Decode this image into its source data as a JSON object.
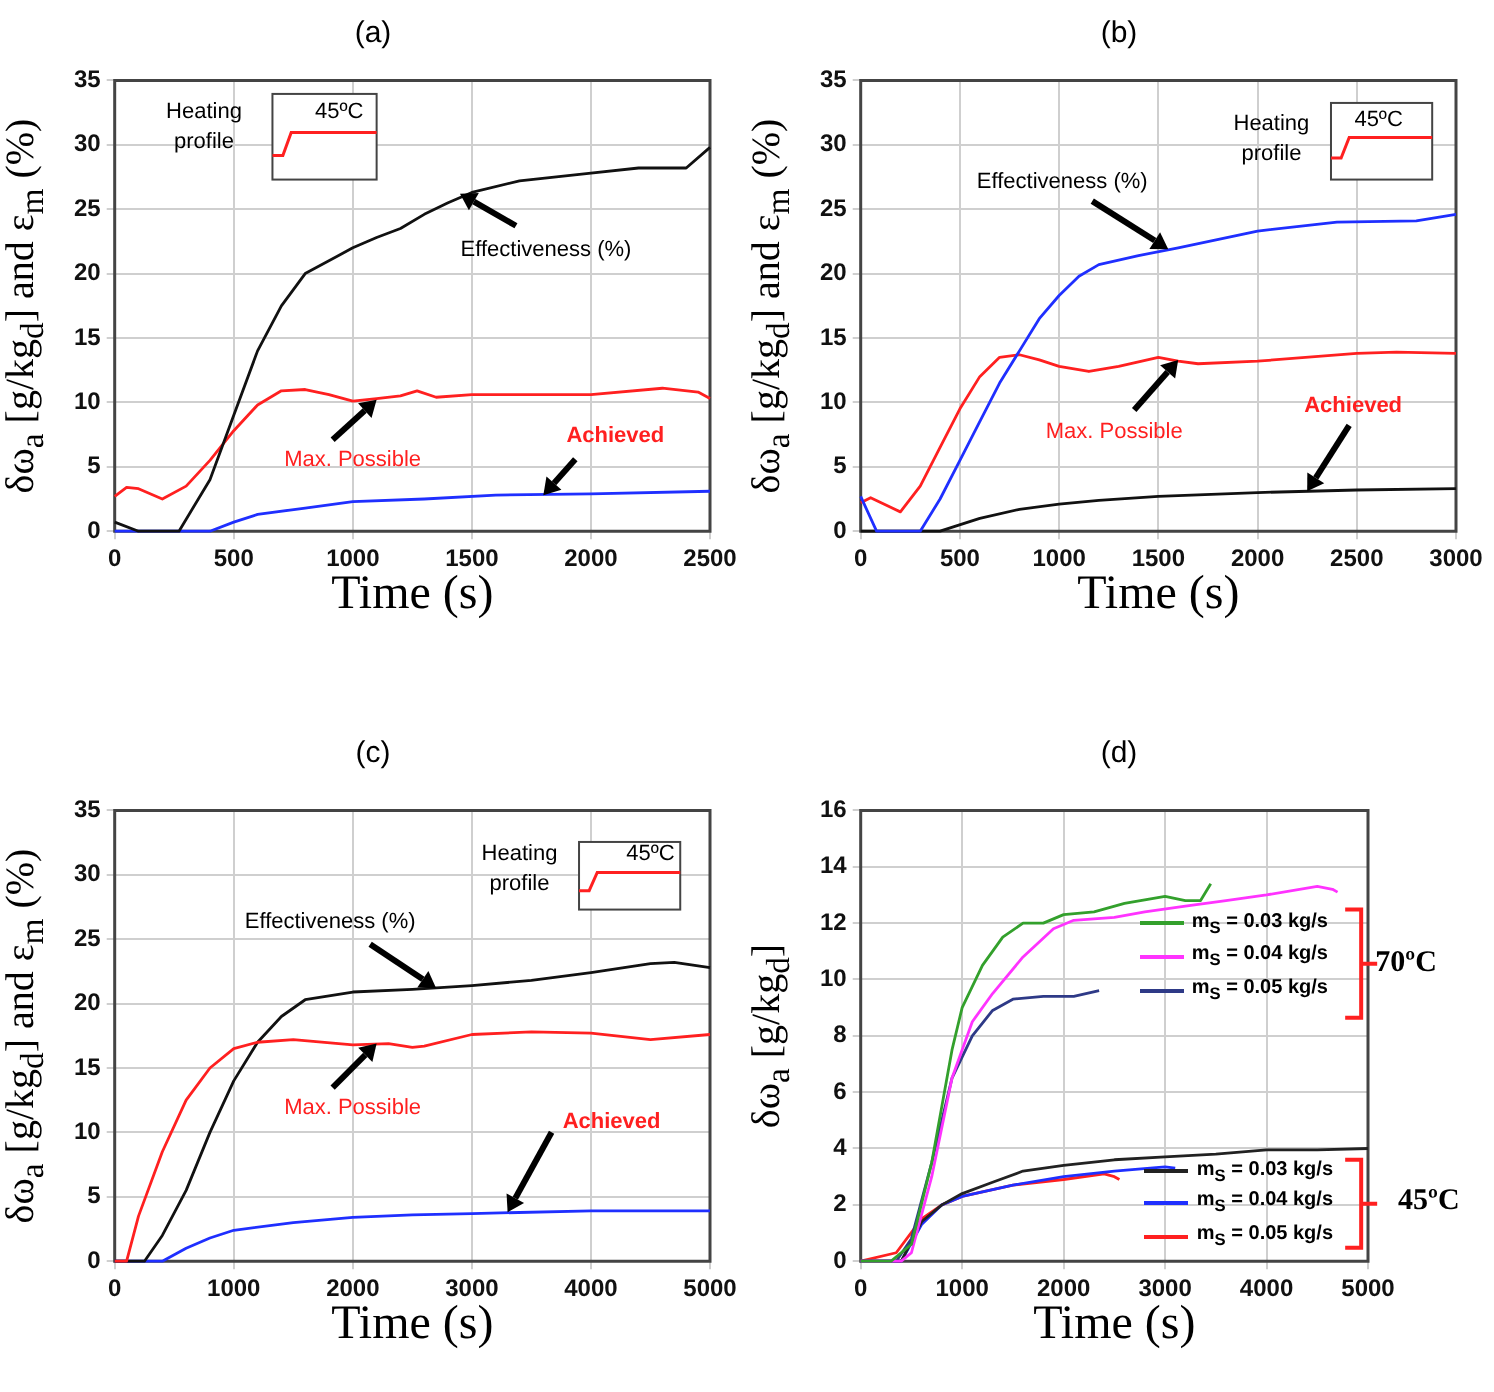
{
  "chart_data": [
    {
      "type": "line",
      "title": "(a)",
      "xlabel": "Time (s)",
      "ylabel": "δω$_{a}$ [g/kg$_{d}$] and ε$_{m}$ (%)",
      "xlim": [
        0,
        2500
      ],
      "xticks": [
        0,
        500,
        1000,
        1500,
        2000,
        2500
      ],
      "ylim": [
        0,
        35
      ],
      "yticks": [
        0,
        5,
        10,
        15,
        20,
        25,
        30,
        35
      ],
      "grid": true,
      "annotations": [
        "Heating profile",
        "45ºC",
        {
          "text": "Effectiveness (%)",
          "x": 1450,
          "y": 26.2
        },
        {
          "text": "Max. Possible",
          "x": 1100,
          "y": 10.2
        },
        {
          "text": "Achieved",
          "x": 1800,
          "y": 2.8
        }
      ],
      "series": [
        {
          "color": "#111111",
          "x": [
            0,
            100,
            270,
            400,
            500,
            600,
            700,
            800,
            1000,
            1100,
            1200,
            1300,
            1400,
            1500,
            1700,
            2000,
            2200,
            2400,
            2500
          ],
          "values": [
            0.7,
            0,
            0,
            4,
            9,
            14,
            17.5,
            20,
            22,
            22.8,
            23.5,
            24.6,
            25.5,
            26.3,
            27.2,
            27.8,
            28.2,
            28.2,
            29.8
          ]
        },
        {
          "color": "#ff2020",
          "x": [
            0,
            50,
            100,
            200,
            300,
            400,
            500,
            600,
            700,
            800,
            900,
            1000,
            1100,
            1200,
            1270,
            1350,
            1500,
            2000,
            2300,
            2450,
            2500
          ],
          "values": [
            2.7,
            3.4,
            3.3,
            2.5,
            3.5,
            5.5,
            7.8,
            9.8,
            10.9,
            11,
            10.6,
            10.1,
            10.3,
            10.5,
            10.9,
            10.4,
            10.6,
            10.6,
            11.1,
            10.8,
            10.3
          ]
        },
        {
          "color": "#1f2fff",
          "x": [
            0,
            400,
            500,
            600,
            800,
            1000,
            1300,
            1600,
            2000,
            2500
          ],
          "values": [
            0,
            0,
            0.7,
            1.3,
            1.8,
            2.3,
            2.5,
            2.8,
            2.9,
            3.1
          ]
        }
      ]
    },
    {
      "type": "line",
      "title": "(b)",
      "xlabel": "Time (s)",
      "ylabel": "δω$_{a}$ [g/kg$_{d}$] and ε$_{m}$ (%)",
      "xlim": [
        0,
        3000
      ],
      "xticks": [
        0,
        500,
        1000,
        1500,
        2000,
        2500,
        3000
      ],
      "ylim": [
        0,
        35
      ],
      "yticks": [
        0,
        5,
        10,
        15,
        20,
        25,
        30,
        35
      ],
      "grid": true,
      "annotations": [
        "Heating profile",
        "45ºC",
        {
          "text": "Effectiveness (%)",
          "x": 1550,
          "y": 21.9
        },
        {
          "text": "Max. Possible",
          "x": 1600,
          "y": 13.3
        },
        {
          "text": "Achieved",
          "x": 2250,
          "y": 3.1
        }
      ],
      "series": [
        {
          "color": "#1f2fff",
          "x": [
            0,
            80,
            300,
            400,
            500,
            600,
            700,
            800,
            900,
            1000,
            1100,
            1200,
            1400,
            1600,
            2000,
            2400,
            2800,
            3000
          ],
          "values": [
            2.7,
            0,
            0,
            2.5,
            5.5,
            8.5,
            11.5,
            14,
            16.5,
            18.3,
            19.8,
            20.7,
            21.4,
            22,
            23.3,
            24,
            24.1,
            24.6
          ]
        },
        {
          "color": "#ff2020",
          "x": [
            0,
            50,
            200,
            300,
            400,
            500,
            600,
            700,
            800,
            900,
            1000,
            1150,
            1300,
            1500,
            1600,
            1700,
            2000,
            2500,
            2700,
            3000
          ],
          "values": [
            2.2,
            2.6,
            1.5,
            3.5,
            6.5,
            9.5,
            12,
            13.5,
            13.7,
            13.3,
            12.8,
            12.4,
            12.8,
            13.5,
            13.2,
            13,
            13.2,
            13.8,
            13.9,
            13.8
          ]
        },
        {
          "color": "#111111",
          "x": [
            0,
            400,
            600,
            800,
            1000,
            1200,
            1500,
            2000,
            2500,
            3000
          ],
          "values": [
            0,
            0,
            1,
            1.7,
            2.1,
            2.4,
            2.7,
            3,
            3.2,
            3.3
          ]
        }
      ]
    },
    {
      "type": "line",
      "title": "(c)",
      "xlabel": "Time (s)",
      "ylabel": "δω$_{a}$ [g/kg$_{d}$] and ε$_{m}$ (%)",
      "xlim": [
        0,
        5000
      ],
      "xticks": [
        0,
        1000,
        2000,
        3000,
        4000,
        5000
      ],
      "ylim": [
        0,
        35
      ],
      "yticks": [
        0,
        5,
        10,
        15,
        20,
        25,
        30,
        35
      ],
      "grid": true,
      "annotations": [
        "Heating profile",
        "45ºC",
        {
          "text": "Effectiveness (%)",
          "x": 2700,
          "y": 21.2
        },
        {
          "text": "Max. Possible",
          "x": 2200,
          "y": 16.9
        },
        {
          "text": "Achieved",
          "x": 3300,
          "y": 3.8
        }
      ],
      "series": [
        {
          "color": "#ff2020",
          "x": [
            0,
            100,
            200,
            400,
            600,
            800,
            1000,
            1200,
            1500,
            2000,
            2300,
            2500,
            2600,
            3000,
            3500,
            4000,
            4500,
            5000
          ],
          "values": [
            0,
            0,
            3.5,
            8.5,
            12.5,
            15,
            16.5,
            17,
            17.2,
            16.8,
            16.9,
            16.6,
            16.7,
            17.6,
            17.8,
            17.7,
            17.2,
            17.6
          ]
        },
        {
          "color": "#111111",
          "x": [
            0,
            250,
            400,
            600,
            800,
            1000,
            1200,
            1400,
            1600,
            2000,
            2500,
            3000,
            3500,
            4000,
            4500,
            4700,
            5000
          ],
          "values": [
            0,
            0,
            2,
            5.5,
            10,
            14,
            17,
            19,
            20.3,
            20.9,
            21.1,
            21.4,
            21.8,
            22.4,
            23.1,
            23.2,
            22.8
          ]
        },
        {
          "color": "#1f2fff",
          "x": [
            0,
            400,
            600,
            800,
            1000,
            1500,
            2000,
            2500,
            3000,
            4000,
            5000
          ],
          "values": [
            0,
            0,
            1,
            1.8,
            2.4,
            3,
            3.4,
            3.6,
            3.7,
            3.9,
            3.9
          ]
        }
      ]
    },
    {
      "type": "line",
      "title": "(d)",
      "xlabel": "Time (s)",
      "ylabel": "δω$_{a}$ [g/kg$_{d}$]",
      "xlim": [
        0,
        5000
      ],
      "xticks": [
        0,
        1000,
        2000,
        3000,
        4000,
        5000
      ],
      "ylim": [
        0,
        16
      ],
      "yticks": [
        0,
        2,
        4,
        6,
        8,
        10,
        12,
        14,
        16
      ],
      "grid": true,
      "legend": "right",
      "annotations": [
        "70ºC",
        "45ºC"
      ],
      "series": [
        {
          "name": "m$_{S}$ = 0.03 kg/s",
          "color": "#33a02c",
          "x": [
            0,
            300,
            500,
            700,
            900,
            1000,
            1200,
            1400,
            1600,
            1800,
            2000,
            2300,
            2600,
            3000,
            3200,
            3350,
            3450
          ],
          "values": [
            0,
            0,
            0.6,
            3.5,
            7.5,
            9,
            10.5,
            11.5,
            12,
            12,
            12.3,
            12.4,
            12.7,
            12.95,
            12.8,
            12.8,
            13.4
          ]
        },
        {
          "name": "m$_{S}$ = 0.04 kg/s",
          "color": "#ff33ff",
          "x": [
            0,
            400,
            500,
            700,
            900,
            1100,
            1300,
            1600,
            1900,
            2100,
            2500,
            2800,
            3200,
            3600,
            4000,
            4500,
            4650,
            4700
          ],
          "values": [
            0,
            0,
            0.3,
            3,
            6.5,
            8.5,
            9.5,
            10.8,
            11.8,
            12.1,
            12.2,
            12.4,
            12.6,
            12.8,
            13,
            13.3,
            13.2,
            13.1
          ]
        },
        {
          "name": "m$_{S}$ = 0.05 kg/s",
          "color": "#2e3a87",
          "x": [
            0,
            350,
            500,
            700,
            900,
            1100,
            1300,
            1500,
            1800,
            2100,
            2350
          ],
          "values": [
            0,
            0,
            0.8,
            3.5,
            6.5,
            8,
            8.9,
            9.3,
            9.4,
            9.4,
            9.6
          ]
        },
        {
          "name": "m$_{S}$ = 0.03 kg/s",
          "color": "#222222",
          "x": [
            0,
            400,
            600,
            800,
            1000,
            1300,
            1600,
            2000,
            2500,
            3000,
            3500,
            4000,
            4500,
            5000
          ],
          "values": [
            0,
            0,
            1.4,
            2,
            2.4,
            2.8,
            3.2,
            3.4,
            3.6,
            3.7,
            3.8,
            3.95,
            3.95,
            4
          ]
        },
        {
          "name": "m$_{S}$ = 0.04 kg/s",
          "color": "#1f2fff",
          "x": [
            0,
            400,
            600,
            800,
            1000,
            1500,
            2000,
            2500,
            3000,
            3100
          ],
          "values": [
            0,
            0,
            1.3,
            2,
            2.3,
            2.7,
            3,
            3.2,
            3.35,
            3.3
          ]
        },
        {
          "name": "m$_{S}$ = 0.05 kg/s",
          "color": "#ff2020",
          "x": [
            0,
            350,
            600,
            800,
            1000,
            1500,
            2000,
            2400,
            2500,
            2550
          ],
          "values": [
            0,
            0.3,
            1.5,
            2,
            2.3,
            2.7,
            2.9,
            3.1,
            3.0,
            2.9
          ]
        }
      ]
    }
  ]
}
